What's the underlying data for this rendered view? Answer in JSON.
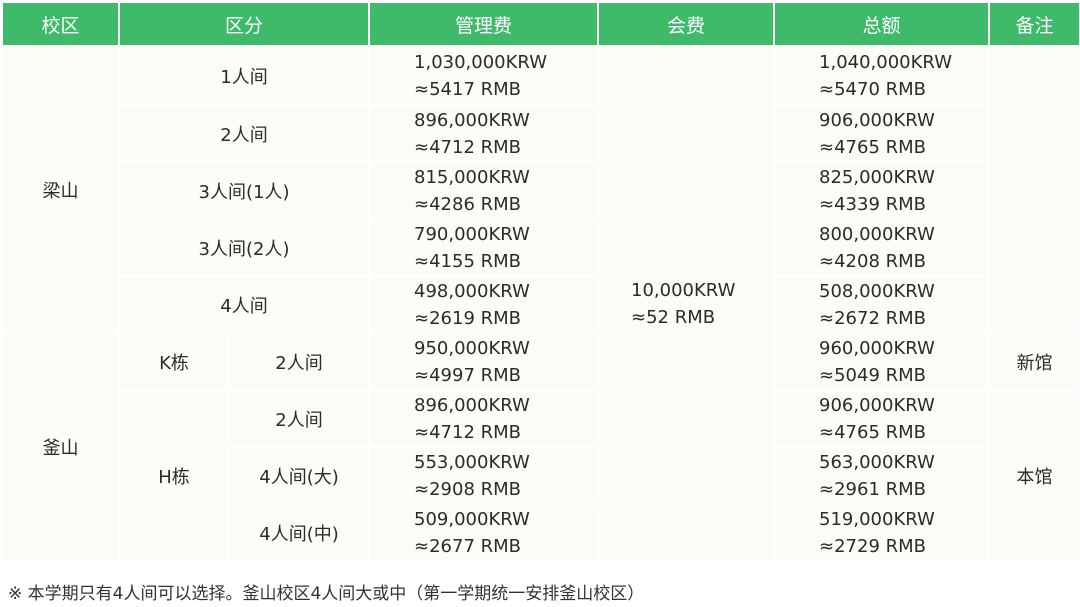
{
  "headers": [
    "校区",
    "区分",
    "管理费",
    "会费",
    "总额",
    "备注"
  ],
  "campuses": {
    "yangsan": "梁山",
    "busan": "釜山"
  },
  "buildings": {
    "k": "K栋",
    "h": "H栋"
  },
  "membership_fee": {
    "krw": "10,000KRW",
    "rmb": "≈52 RMB"
  },
  "remarks": {
    "new": "新馆",
    "main": "本馆"
  },
  "rows": [
    {
      "type": "1人间",
      "mgmt_krw": "1,030,000KRW",
      "mgmt_rmb": "≈5417 RMB",
      "total_krw": "1,040,000KRW",
      "total_rmb": "≈5470 RMB"
    },
    {
      "type": "2人间",
      "mgmt_krw": "896,000KRW",
      "mgmt_rmb": "≈4712 RMB",
      "total_krw": "906,000KRW",
      "total_rmb": "≈4765 RMB"
    },
    {
      "type": "3人间(1人)",
      "mgmt_krw": "815,000KRW",
      "mgmt_rmb": "≈4286 RMB",
      "total_krw": "825,000KRW",
      "total_rmb": "≈4339 RMB"
    },
    {
      "type": "3人间(2人)",
      "mgmt_krw": "790,000KRW",
      "mgmt_rmb": "≈4155 RMB",
      "total_krw": "800,000KRW",
      "total_rmb": "≈4208 RMB"
    },
    {
      "type": "4人间",
      "mgmt_krw": "498,000KRW",
      "mgmt_rmb": "≈2619 RMB",
      "total_krw": "508,000KRW",
      "total_rmb": "≈2672 RMB"
    },
    {
      "type": "2人间",
      "mgmt_krw": "950,000KRW",
      "mgmt_rmb": "≈4997 RMB",
      "total_krw": "960,000KRW",
      "total_rmb": "≈5049 RMB"
    },
    {
      "type": "2人间",
      "mgmt_krw": "896,000KRW",
      "mgmt_rmb": "≈4712 RMB",
      "total_krw": "906,000KRW",
      "total_rmb": "≈4765 RMB"
    },
    {
      "type": "4人间(大)",
      "mgmt_krw": "553,000KRW",
      "mgmt_rmb": "≈2908 RMB",
      "total_krw": "563,000KRW",
      "total_rmb": "≈2961 RMB"
    },
    {
      "type": "4人间(中)",
      "mgmt_krw": "509,000KRW",
      "mgmt_rmb": "≈2677 RMB",
      "total_krw": "519,000KRW",
      "total_rmb": "≈2729 RMB"
    }
  ],
  "footnote": "※ 本学期只有4人间可以选择。釜山校区4人间大或中（第一学期统一安排釜山校区）",
  "colors": {
    "header_bg": "#3fba6b",
    "cell_bg": "#fbfcf7",
    "text": "#2b2b2b"
  }
}
